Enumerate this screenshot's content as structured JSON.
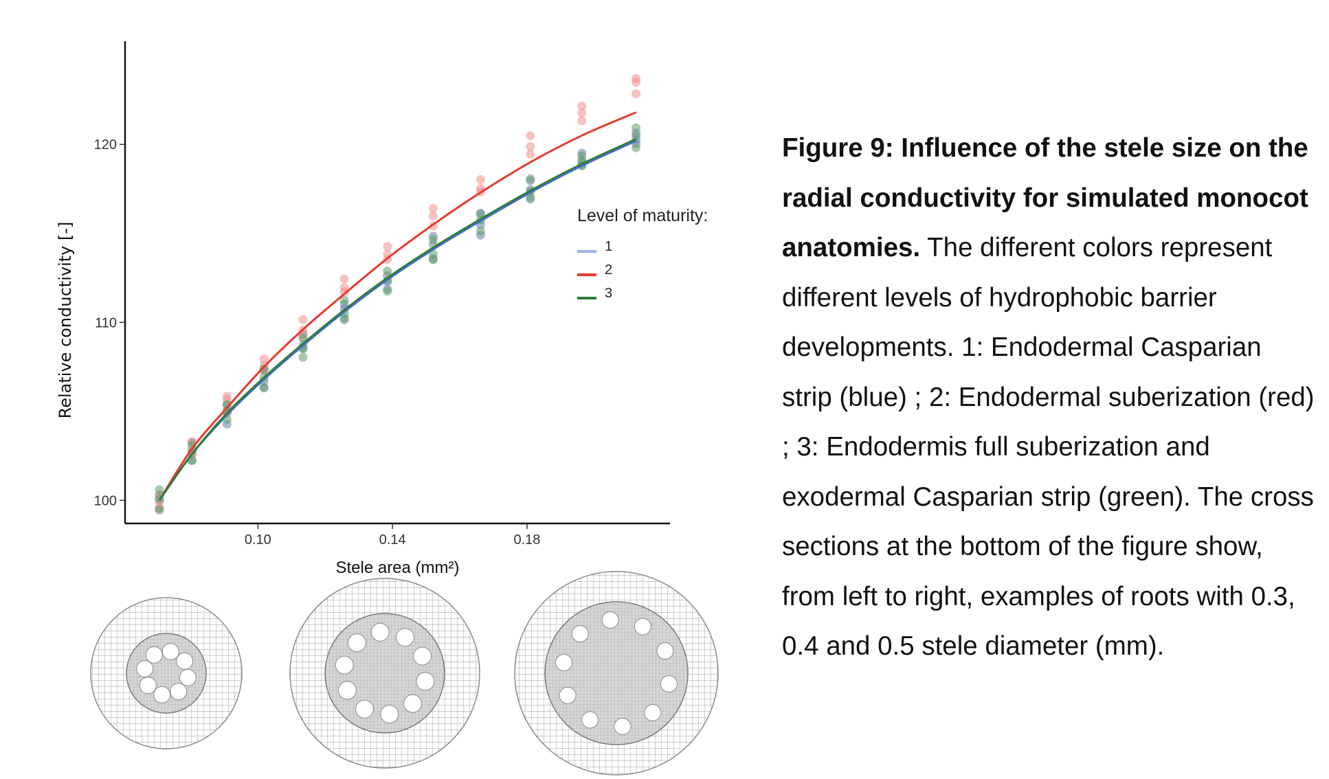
{
  "caption": {
    "bold": "Figure 9: Influence of the stele size on the radial conductivity for simulated monocot anatomies.",
    "text": " The different colors represent different levels of hydrophobic barrier developments. 1: Endodermal Casparian strip (blue) ; 2: Endodermal suberization (red) ; 3: Endodermis full suberization and exodermal Casparian strip (green). The cross sections at the bottom of the figure show, from left to right, examples of roots with 0.3, 0.4 and 0.5 stele diameter (mm)."
  },
  "chart_data": {
    "type": "scatter",
    "title": "",
    "xlabel": "Stele area (mm²)",
    "ylabel": "Relative conductivity [-]",
    "xlim": [
      0.0605,
      0.2225
    ],
    "ylim": [
      98.7,
      125.8
    ],
    "xticks": [
      0.1,
      0.14,
      0.18
    ],
    "xtick_labels": [
      "0.10",
      "0.14",
      "0.18"
    ],
    "yticks": [
      100,
      110,
      120
    ],
    "ytick_labels": [
      "100",
      "110",
      "120"
    ],
    "grid": false,
    "legend": {
      "title": "Level of maturity:",
      "placement": "right"
    },
    "series": [
      {
        "name": "1",
        "color": "#4a6bd8",
        "point_color": "#6c7fa8",
        "x": [
          0.0707,
          0.0804,
          0.0908,
          0.1018,
          0.1134,
          0.1257,
          0.1385,
          0.1521,
          0.1662,
          0.181,
          0.1963,
          0.2124
        ],
        "y": [
          100.0,
          102.8,
          104.9,
          106.8,
          108.9,
          110.7,
          112.3,
          114.2,
          115.5,
          117.5,
          119.2,
          120.3
        ],
        "fit": [
          100.0,
          102.6,
          104.8,
          106.8,
          108.7,
          110.6,
          112.4,
          114.1,
          115.7,
          117.3,
          118.8,
          120.2
        ]
      },
      {
        "name": "2",
        "color": "#e8392e",
        "point_color": "#f0908c",
        "x": [
          0.0707,
          0.0804,
          0.0908,
          0.1018,
          0.1134,
          0.1257,
          0.1385,
          0.1521,
          0.1662,
          0.181,
          0.1963,
          0.2124
        ],
        "y": [
          100.0,
          102.9,
          105.5,
          107.6,
          109.6,
          112.1,
          114.0,
          115.9,
          117.6,
          119.9,
          121.8,
          123.4
        ],
        "fit": [
          100.0,
          102.9,
          105.2,
          107.5,
          109.6,
          111.6,
          113.6,
          115.5,
          117.3,
          119.0,
          120.5,
          121.8
        ]
      },
      {
        "name": "3",
        "color": "#2f7d3c",
        "point_color": "#5e9e6a",
        "x": [
          0.0707,
          0.0804,
          0.0908,
          0.1018,
          0.1134,
          0.1257,
          0.1385,
          0.1521,
          0.1662,
          0.181,
          0.1963,
          0.2124
        ],
        "y": [
          100.0,
          102.5,
          104.9,
          107.0,
          108.6,
          110.6,
          112.4,
          114.0,
          115.6,
          117.5,
          119.1,
          120.4
        ],
        "fit": [
          100.0,
          102.6,
          104.9,
          106.9,
          108.8,
          110.7,
          112.5,
          114.2,
          115.8,
          117.4,
          118.9,
          120.3
        ]
      }
    ]
  }
}
